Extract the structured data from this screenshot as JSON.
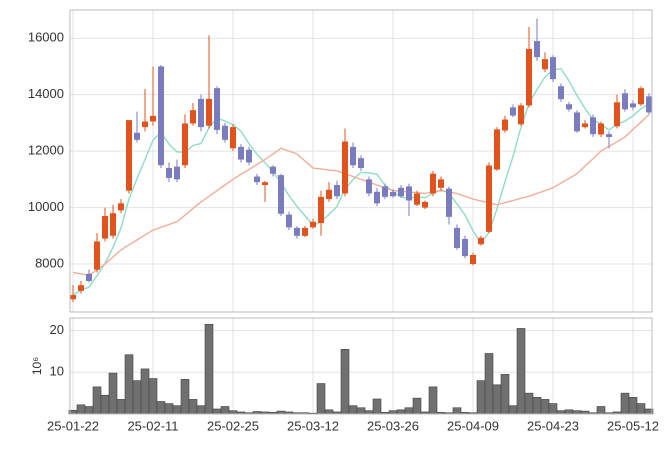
{
  "chart_data": [
    {
      "type": "candlestick",
      "categories": [
        "25-01-22",
        null,
        null,
        null,
        null,
        null,
        null,
        null,
        null,
        null,
        "25-02-11",
        null,
        null,
        null,
        null,
        null,
        null,
        null,
        null,
        null,
        "25-02-25",
        null,
        null,
        null,
        null,
        null,
        null,
        null,
        null,
        null,
        "25-03-12",
        null,
        null,
        null,
        null,
        null,
        null,
        null,
        null,
        null,
        "25-03-26",
        null,
        null,
        null,
        null,
        null,
        null,
        null,
        null,
        null,
        "25-04-09",
        null,
        null,
        null,
        null,
        null,
        null,
        null,
        null,
        null,
        "25-04-23",
        null,
        null,
        null,
        null,
        null,
        null,
        null,
        null,
        null,
        "25-05-12",
        null,
        null
      ],
      "open": [
        6750,
        7050,
        7650,
        7800,
        8900,
        9000,
        9900,
        10600,
        12650,
        12850,
        13050,
        15000,
        11400,
        11450,
        11500,
        12980,
        13850,
        12900,
        14230,
        12900,
        12100,
        12150,
        12050,
        11100,
        10800,
        11450,
        11150,
        9750,
        9280,
        9000,
        9300,
        9450,
        10300,
        10800,
        10500,
        12150,
        11750,
        11000,
        10560,
        10750,
        10550,
        10700,
        10750,
        10100,
        10000,
        10500,
        10700,
        10670,
        9280,
        8890,
        8000,
        8700,
        9140,
        11350,
        12730,
        13550,
        12950,
        13620,
        15900,
        14900,
        15330,
        14300,
        13660,
        13370,
        12850,
        13200,
        12590,
        12600,
        12880,
        14050,
        13690,
        13660,
        13940
      ],
      "high": [
        7250,
        7400,
        7800,
        9100,
        10000,
        10100,
        10300,
        13100,
        13400,
        14200,
        15000,
        15050,
        11600,
        11700,
        13300,
        13700,
        14000,
        16100,
        14300,
        13000,
        12950,
        12250,
        12150,
        11200,
        10950,
        11500,
        11200,
        9850,
        9350,
        9350,
        9600,
        10600,
        10900,
        10950,
        12800,
        12300,
        11850,
        11100,
        10700,
        10850,
        10650,
        10800,
        10850,
        10600,
        10250,
        11300,
        11100,
        10750,
        9400,
        9000,
        8400,
        9000,
        11600,
        12850,
        13250,
        13650,
        13700,
        16400,
        16700,
        15500,
        15400,
        14400,
        13750,
        13450,
        13100,
        13300,
        13050,
        12700,
        14000,
        14200,
        13800,
        14300,
        14050
      ],
      "low": [
        6650,
        6950,
        7350,
        7700,
        8800,
        8900,
        9800,
        10500,
        12300,
        12700,
        12900,
        11400,
        10900,
        10900,
        11400,
        12900,
        12700,
        12800,
        12600,
        12300,
        12000,
        11600,
        11500,
        10800,
        10200,
        11100,
        9700,
        9200,
        8900,
        8950,
        9250,
        9000,
        10200,
        10300,
        10400,
        11400,
        11300,
        10400,
        10050,
        10300,
        10350,
        10350,
        9700,
        10050,
        9950,
        10400,
        10600,
        9400,
        8500,
        8200,
        7950,
        8650,
        9100,
        11300,
        12650,
        13200,
        12900,
        13550,
        15200,
        14800,
        14450,
        13750,
        13400,
        12650,
        12800,
        12500,
        12500,
        12100,
        12800,
        13400,
        13450,
        13600,
        13300
      ],
      "close": [
        6900,
        7250,
        7400,
        8800,
        9700,
        9800,
        10150,
        13100,
        12400,
        13050,
        13250,
        11500,
        11050,
        11000,
        12980,
        13450,
        12850,
        13850,
        12750,
        12400,
        12850,
        11700,
        11600,
        10900,
        10900,
        11200,
        9780,
        9300,
        9000,
        9280,
        9500,
        10380,
        10630,
        10400,
        12340,
        11500,
        11400,
        10500,
        10150,
        10380,
        10400,
        10400,
        10250,
        10500,
        10200,
        11200,
        11000,
        9670,
        8570,
        8280,
        8320,
        8930,
        11490,
        12770,
        13120,
        13260,
        13620,
        15620,
        15330,
        15260,
        14550,
        13840,
        13480,
        12700,
        12980,
        12600,
        12980,
        12500,
        13730,
        13480,
        13550,
        14230,
        13370
      ],
      "up_color": "#e0531d",
      "down_color": "#7b7bbf",
      "lines": [
        {
          "color": "#8fdcc6",
          "values": [
            6900,
            7075,
            7180,
            7590,
            8020,
            8590,
            9270,
            10310,
            11030,
            11700,
            12390,
            12660,
            12250,
            11970,
            11960,
            12200,
            12270,
            12830,
            13180,
            13060,
            12940,
            12710,
            12260,
            11890,
            11590,
            11260,
            10880,
            10420,
            10040,
            9710,
            9370,
            9490,
            9760,
            10040,
            10650,
            10990,
            11250,
            11230,
            11180,
            10790,
            10570,
            10370,
            10320,
            10390,
            10350,
            10510,
            10630,
            10510,
            10130,
            9740,
            9170,
            8750,
            9120,
            9960,
            10920,
            11810,
            12850,
            13680,
            14190,
            14620,
            14880,
            14920,
            14490,
            13970,
            13510,
            13120,
            12950,
            12750,
            12960,
            13060,
            13250,
            13500,
            13670
          ]
        },
        {
          "color": "#f0ae98",
          "values": [
            7700,
            7650,
            7600,
            7800,
            8000,
            8250,
            8500,
            8680,
            8850,
            9030,
            9200,
            9300,
            9400,
            9500,
            9730,
            9970,
            10200,
            10400,
            10600,
            10800,
            11000,
            11180,
            11350,
            11530,
            11700,
            11900,
            12100,
            12000,
            11900,
            11650,
            11400,
            11370,
            11330,
            11300,
            11200,
            11100,
            11000,
            10900,
            10800,
            10700,
            10600,
            10580,
            10550,
            10530,
            10500,
            10550,
            10600,
            10550,
            10500,
            10400,
            10300,
            10230,
            10170,
            10100,
            10180,
            10250,
            10330,
            10400,
            10500,
            10600,
            10700,
            10870,
            11030,
            11200,
            11470,
            11730,
            12000,
            12170,
            12330,
            12500,
            12770,
            13030,
            13300
          ]
        }
      ],
      "ylim": [
        6300,
        17000
      ],
      "yticks": [
        8000,
        10000,
        12000,
        14000,
        16000
      ],
      "grid": true
    },
    {
      "type": "bar",
      "y_label": "10⁶",
      "values": [
        0.9,
        2.2,
        1.8,
        6.5,
        4.5,
        9.8,
        3.5,
        14.2,
        8,
        10.8,
        8.5,
        3,
        2.5,
        2,
        8.3,
        3.5,
        2,
        21.5,
        1.2,
        1.8,
        0.8,
        0.5,
        0.3,
        0.6,
        0.5,
        0.4,
        0.7,
        0.5,
        0.3,
        0.3,
        0.2,
        7.3,
        1,
        0.5,
        15.5,
        2,
        1.5,
        0.8,
        3.6,
        0.4,
        0.8,
        1,
        1.5,
        3.8,
        0.5,
        6.5,
        0.4,
        0.3,
        1.5,
        0.4,
        0.3,
        8,
        14.5,
        7,
        9.5,
        2,
        20.5,
        5,
        4,
        3.5,
        2.5,
        0.8,
        1,
        0.8,
        0.7,
        0.3,
        1.8,
        0.3,
        0.5,
        5,
        4,
        2.5,
        1.2
      ],
      "color": "#707070",
      "ylim": [
        0,
        23
      ],
      "yticks": [
        10,
        20
      ],
      "grid": true
    }
  ]
}
